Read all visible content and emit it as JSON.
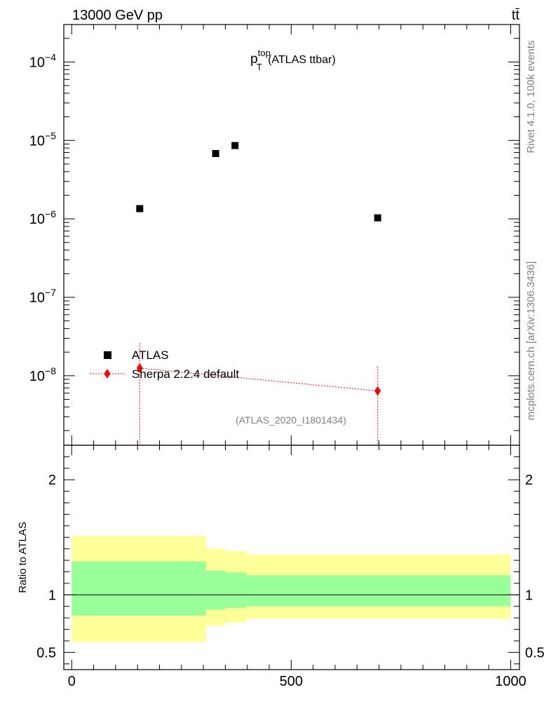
{
  "header": {
    "energy_label": "13000 GeV pp",
    "process_label": "tt̄"
  },
  "side_labels": {
    "rivet": "Rivet 4.1.0,  100k events",
    "mcplots": "mcplots.cern.ch [arXiv:1306.3436]"
  },
  "chart_data": {
    "type": "scatter",
    "title": {
      "base": "p",
      "sup": "top",
      "sub": "T",
      "suffix": " (ATLAS ttbar)"
    },
    "analysis_label": "(ATLAS_2020_I1801434)",
    "main_panel": {
      "yscale": "log",
      "ylim": [
        1.3e-09,
        0.0003
      ],
      "y_ticks": [
        {
          "value": 0.0001,
          "base": "10",
          "exp": "−4"
        },
        {
          "value": 1e-05,
          "base": "10",
          "exp": "−5"
        },
        {
          "value": 1e-06,
          "base": "10",
          "exp": "−6"
        },
        {
          "value": 1e-07,
          "base": "10",
          "exp": "−7"
        },
        {
          "value": 1e-08,
          "base": "10",
          "exp": "−8"
        }
      ],
      "series": [
        {
          "name": "ATLAS",
          "marker": "square",
          "color": "#000000",
          "points": [
            {
              "x": 155,
              "y": 1.35e-06
            },
            {
              "x": 328,
              "y": 6.8e-06
            },
            {
              "x": 372,
              "y": 8.6e-06
            },
            {
              "x": 697,
              "y": 1.03e-06
            }
          ]
        },
        {
          "name": "Sherpa 2.2.4 default",
          "marker": "diamond",
          "color": "#ff0000",
          "line": "dotted",
          "points": [
            {
              "x": 155,
              "y": 1.25e-08,
              "yerr_hi": 2.6e-08
            },
            {
              "x": 697,
              "y": 6.4e-09,
              "yerr_hi": 1.3e-08
            }
          ]
        }
      ],
      "legend_position": "lower-left"
    },
    "ratio_panel": {
      "ylabel": "Ratio to ATLAS",
      "ylim": [
        0.35,
        2.3
      ],
      "y_ticks": [
        {
          "value": 0.5,
          "label": "0.5"
        },
        {
          "value": 1,
          "label": "1"
        },
        {
          "value": 2,
          "label": "2"
        }
      ],
      "bands": [
        {
          "x_lo": 0,
          "x_hi": 306,
          "outer": [
            0.59,
            1.51
          ],
          "inner": [
            0.82,
            1.29
          ]
        },
        {
          "x_lo": 306,
          "x_hi": 350,
          "outer": [
            0.73,
            1.4
          ],
          "inner": [
            0.87,
            1.21
          ]
        },
        {
          "x_lo": 350,
          "x_hi": 398,
          "outer": [
            0.76,
            1.38
          ],
          "inner": [
            0.885,
            1.195
          ]
        },
        {
          "x_lo": 398,
          "x_hi": 1000,
          "outer": [
            0.79,
            1.35
          ],
          "inner": [
            0.9,
            1.17
          ]
        }
      ],
      "reference_line": 1,
      "colors": {
        "outer": "#ffff99",
        "inner": "#99ff99"
      }
    },
    "xlim": [
      -18,
      1020
    ],
    "x_ticks": [
      {
        "value": 0,
        "label": "0"
      },
      {
        "value": 500,
        "label": "500"
      },
      {
        "value": 1000,
        "label": "1000"
      }
    ]
  }
}
